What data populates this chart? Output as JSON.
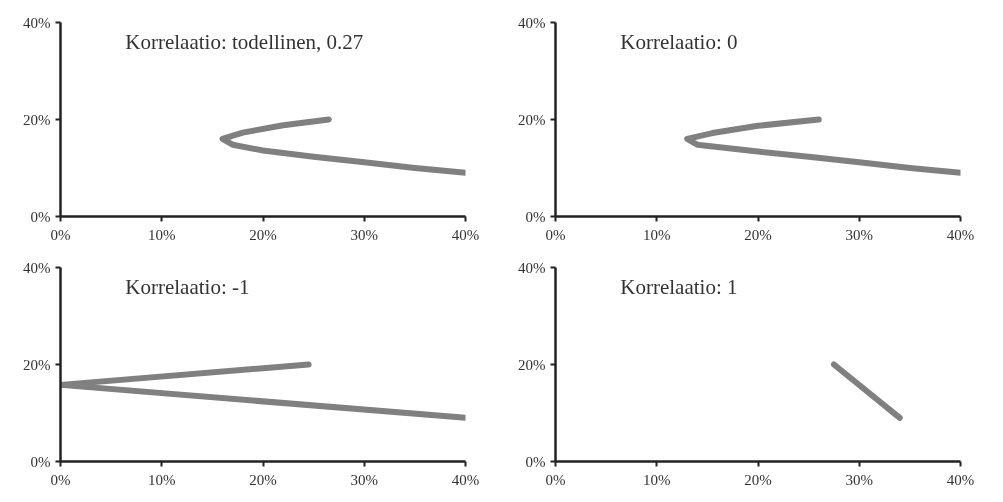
{
  "chart_data": [
    {
      "type": "line",
      "title": "Korrelaatio: todellinen, 0.27",
      "xlim": [
        0,
        40
      ],
      "ylim": [
        0,
        40
      ],
      "xticks": [
        {
          "value": 0,
          "label": "0%"
        },
        {
          "value": 10,
          "label": "10%"
        },
        {
          "value": 20,
          "label": "20%"
        },
        {
          "value": 30,
          "label": "30%"
        },
        {
          "value": 40,
          "label": "40%"
        }
      ],
      "yticks": [
        {
          "value": 0,
          "label": "0%"
        },
        {
          "value": 20,
          "label": "20%"
        },
        {
          "value": 40,
          "label": "40%"
        }
      ],
      "grid": false,
      "marker": "none",
      "line_style": "solid",
      "series": [
        {
          "color": "#808080",
          "x": [
            26.5,
            22,
            18,
            16,
            17,
            20,
            25,
            30,
            35,
            40
          ],
          "values": [
            20,
            18.8,
            17.3,
            16,
            14.8,
            13.6,
            12.3,
            11.2,
            10,
            9
          ]
        }
      ]
    },
    {
      "type": "line",
      "title": "Korrelaatio: 0",
      "xlim": [
        0,
        40
      ],
      "ylim": [
        0,
        40
      ],
      "xticks": [
        {
          "value": 0,
          "label": "0%"
        },
        {
          "value": 10,
          "label": "10%"
        },
        {
          "value": 20,
          "label": "20%"
        },
        {
          "value": 30,
          "label": "30%"
        },
        {
          "value": 40,
          "label": "40%"
        }
      ],
      "yticks": [
        {
          "value": 0,
          "label": "0%"
        },
        {
          "value": 20,
          "label": "20%"
        },
        {
          "value": 40,
          "label": "40%"
        }
      ],
      "grid": false,
      "marker": "none",
      "line_style": "solid",
      "series": [
        {
          "color": "#808080",
          "x": [
            26,
            20,
            15.5,
            13,
            14,
            20,
            25,
            30,
            35,
            40
          ],
          "values": [
            20,
            18.7,
            17.2,
            16,
            14.8,
            13.4,
            12.3,
            11.2,
            10,
            9
          ]
        }
      ]
    },
    {
      "type": "line",
      "title": "Korrelaatio: -1",
      "xlim": [
        0,
        40
      ],
      "ylim": [
        0,
        40
      ],
      "xticks": [
        {
          "value": 0,
          "label": "0%"
        },
        {
          "value": 10,
          "label": "10%"
        },
        {
          "value": 20,
          "label": "20%"
        },
        {
          "value": 30,
          "label": "30%"
        },
        {
          "value": 40,
          "label": "40%"
        }
      ],
      "yticks": [
        {
          "value": 0,
          "label": "0%"
        },
        {
          "value": 20,
          "label": "20%"
        },
        {
          "value": 40,
          "label": "40%"
        }
      ],
      "grid": false,
      "marker": "none",
      "line_style": "solid",
      "series": [
        {
          "color": "#808080",
          "x": [
            24.5,
            0,
            40
          ],
          "values": [
            20,
            15.8,
            9
          ]
        }
      ]
    },
    {
      "type": "line",
      "title": "Korrelaatio: 1",
      "xlim": [
        0,
        40
      ],
      "ylim": [
        0,
        40
      ],
      "xticks": [
        {
          "value": 0,
          "label": "0%"
        },
        {
          "value": 10,
          "label": "10%"
        },
        {
          "value": 20,
          "label": "20%"
        },
        {
          "value": 30,
          "label": "30%"
        },
        {
          "value": 40,
          "label": "40%"
        }
      ],
      "yticks": [
        {
          "value": 0,
          "label": "0%"
        },
        {
          "value": 20,
          "label": "20%"
        },
        {
          "value": 40,
          "label": "40%"
        }
      ],
      "grid": false,
      "marker": "none",
      "line_style": "solid",
      "series": [
        {
          "color": "#808080",
          "x": [
            27.5,
            34
          ],
          "values": [
            20,
            9
          ]
        }
      ]
    }
  ]
}
